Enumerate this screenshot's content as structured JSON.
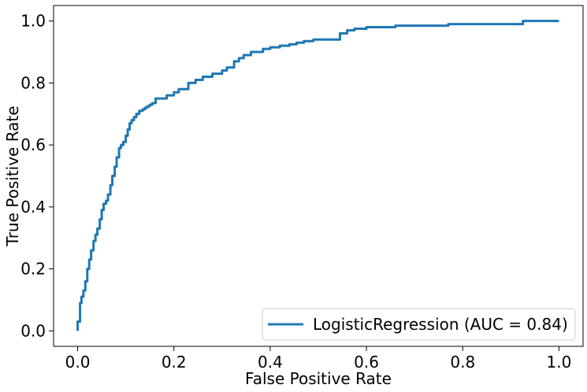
{
  "chart_data": {
    "type": "line",
    "title": "",
    "xlabel": "False Positive Rate",
    "ylabel": "True Positive Rate",
    "xlim": [
      -0.05,
      1.05
    ],
    "ylim": [
      -0.05,
      1.05
    ],
    "xticks": [
      "0.0",
      "0.2",
      "0.4",
      "0.6",
      "0.8",
      "1.0"
    ],
    "yticks": [
      "0.0",
      "0.2",
      "0.4",
      "0.6",
      "0.8",
      "1.0"
    ],
    "grid": false,
    "legend_position": "lower-right",
    "series": [
      {
        "name": "LogisticRegression (AUC = 0.84)",
        "color": "#1f77b4",
        "x": [
          0.0,
          0.0,
          0.005,
          0.005,
          0.008,
          0.008,
          0.012,
          0.012,
          0.016,
          0.016,
          0.02,
          0.02,
          0.024,
          0.024,
          0.028,
          0.028,
          0.033,
          0.033,
          0.037,
          0.037,
          0.041,
          0.041,
          0.046,
          0.046,
          0.05,
          0.05,
          0.054,
          0.054,
          0.059,
          0.059,
          0.063,
          0.063,
          0.068,
          0.068,
          0.072,
          0.072,
          0.077,
          0.077,
          0.081,
          0.081,
          0.086,
          0.086,
          0.09,
          0.09,
          0.095,
          0.095,
          0.1,
          0.1,
          0.104,
          0.104,
          0.108,
          0.108,
          0.112,
          0.112,
          0.117,
          0.117,
          0.122,
          0.122,
          0.128,
          0.128,
          0.135,
          0.135,
          0.14,
          0.14,
          0.145,
          0.145,
          0.15,
          0.15,
          0.155,
          0.155,
          0.162,
          0.162,
          0.185,
          0.185,
          0.2,
          0.2,
          0.21,
          0.21,
          0.23,
          0.23,
          0.245,
          0.245,
          0.26,
          0.26,
          0.28,
          0.28,
          0.3,
          0.3,
          0.31,
          0.31,
          0.325,
          0.325,
          0.335,
          0.335,
          0.345,
          0.345,
          0.36,
          0.36,
          0.385,
          0.385,
          0.4,
          0.4,
          0.42,
          0.42,
          0.44,
          0.44,
          0.455,
          0.455,
          0.47,
          0.47,
          0.49,
          0.49,
          0.545,
          0.545,
          0.56,
          0.56,
          0.575,
          0.575,
          0.6,
          0.6,
          0.66,
          0.66,
          0.77,
          0.77,
          0.925,
          0.925,
          1.0
        ],
        "y": [
          0.0,
          0.03,
          0.03,
          0.09,
          0.09,
          0.11,
          0.11,
          0.13,
          0.13,
          0.16,
          0.16,
          0.2,
          0.2,
          0.23,
          0.23,
          0.26,
          0.26,
          0.29,
          0.29,
          0.31,
          0.31,
          0.33,
          0.33,
          0.36,
          0.36,
          0.39,
          0.39,
          0.41,
          0.41,
          0.42,
          0.42,
          0.44,
          0.44,
          0.47,
          0.47,
          0.5,
          0.5,
          0.53,
          0.53,
          0.56,
          0.56,
          0.59,
          0.59,
          0.6,
          0.6,
          0.61,
          0.61,
          0.63,
          0.63,
          0.65,
          0.65,
          0.67,
          0.67,
          0.68,
          0.68,
          0.69,
          0.69,
          0.7,
          0.7,
          0.71,
          0.71,
          0.715,
          0.715,
          0.72,
          0.72,
          0.725,
          0.725,
          0.73,
          0.73,
          0.735,
          0.735,
          0.75,
          0.75,
          0.76,
          0.76,
          0.77,
          0.77,
          0.78,
          0.78,
          0.8,
          0.8,
          0.81,
          0.81,
          0.82,
          0.82,
          0.83,
          0.83,
          0.84,
          0.84,
          0.85,
          0.85,
          0.87,
          0.87,
          0.88,
          0.88,
          0.89,
          0.89,
          0.9,
          0.9,
          0.91,
          0.91,
          0.915,
          0.915,
          0.92,
          0.92,
          0.925,
          0.925,
          0.93,
          0.93,
          0.935,
          0.935,
          0.94,
          0.94,
          0.96,
          0.96,
          0.97,
          0.97,
          0.975,
          0.975,
          0.98,
          0.98,
          0.985,
          0.985,
          0.99,
          0.99,
          1.0,
          1.0
        ]
      }
    ]
  }
}
